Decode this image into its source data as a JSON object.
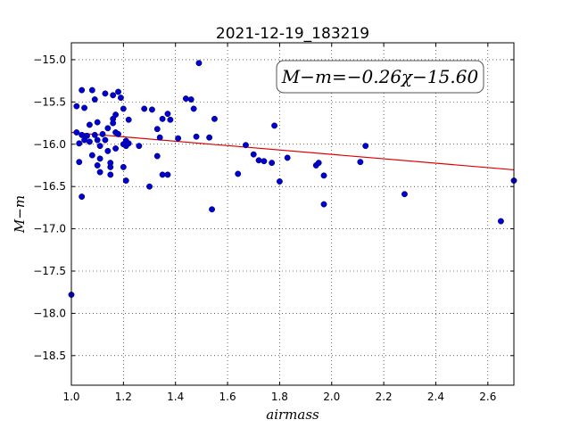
{
  "chart_data": {
    "type": "scatter",
    "title": "2021-12-19_183219",
    "xlabel": "airmass",
    "ylabel": "M−m",
    "xlim": [
      1.0,
      2.7
    ],
    "ylim": [
      -18.85,
      -14.8
    ],
    "x_ticks": [
      1.0,
      1.2,
      1.4,
      1.6,
      1.8,
      2.0,
      2.2,
      2.4,
      2.6
    ],
    "x_tick_labels": [
      "1.0",
      "1.2",
      "1.4",
      "1.6",
      "1.8",
      "2.0",
      "2.2",
      "2.4",
      "2.6"
    ],
    "y_ticks": [
      -15.0,
      -15.5,
      -16.0,
      -16.5,
      -17.0,
      -17.5,
      -18.0,
      -18.5
    ],
    "y_tick_labels": [
      "−15.0",
      "−15.5",
      "−16.0",
      "−16.5",
      "−17.0",
      "−17.5",
      "−18.0",
      "−18.5"
    ],
    "grid": true,
    "annotation": "M−m=−0.26χ−15.60",
    "point_color": "#0000cc",
    "fit_color": "#dd0000",
    "fit": {
      "slope": -0.26,
      "intercept": -15.6
    },
    "points": [
      [
        1.0,
        -17.78
      ],
      [
        1.02,
        -15.86
      ],
      [
        1.02,
        -15.55
      ],
      [
        1.03,
        -15.99
      ],
      [
        1.03,
        -16.21
      ],
      [
        1.04,
        -15.36
      ],
      [
        1.04,
        -15.89
      ],
      [
        1.04,
        -16.62
      ],
      [
        1.05,
        -15.57
      ],
      [
        1.05,
        -15.95
      ],
      [
        1.06,
        -15.9
      ],
      [
        1.07,
        -15.77
      ],
      [
        1.07,
        -15.97
      ],
      [
        1.08,
        -15.36
      ],
      [
        1.08,
        -16.13
      ],
      [
        1.09,
        -15.47
      ],
      [
        1.09,
        -15.89
      ],
      [
        1.1,
        -15.74
      ],
      [
        1.1,
        -15.95
      ],
      [
        1.1,
        -16.25
      ],
      [
        1.11,
        -16.02
      ],
      [
        1.11,
        -16.17
      ],
      [
        1.11,
        -16.33
      ],
      [
        1.12,
        -15.88
      ],
      [
        1.13,
        -15.4
      ],
      [
        1.13,
        -15.95
      ],
      [
        1.14,
        -15.81
      ],
      [
        1.14,
        -16.08
      ],
      [
        1.15,
        -16.22
      ],
      [
        1.15,
        -16.27
      ],
      [
        1.15,
        -16.36
      ],
      [
        1.16,
        -15.42
      ],
      [
        1.16,
        -15.7
      ],
      [
        1.16,
        -15.75
      ],
      [
        1.17,
        -15.65
      ],
      [
        1.17,
        -15.86
      ],
      [
        1.17,
        -16.05
      ],
      [
        1.18,
        -15.38
      ],
      [
        1.18,
        -15.88
      ],
      [
        1.19,
        -15.45
      ],
      [
        1.2,
        -15.58
      ],
      [
        1.2,
        -16.0
      ],
      [
        1.2,
        -16.27
      ],
      [
        1.21,
        -15.96
      ],
      [
        1.21,
        -16.02
      ],
      [
        1.21,
        -16.43
      ],
      [
        1.22,
        -15.71
      ],
      [
        1.22,
        -15.99
      ],
      [
        1.26,
        -16.02
      ],
      [
        1.28,
        -15.58
      ],
      [
        1.3,
        -16.5
      ],
      [
        1.31,
        -15.59
      ],
      [
        1.33,
        -15.82
      ],
      [
        1.33,
        -16.14
      ],
      [
        1.34,
        -15.92
      ],
      [
        1.35,
        -15.7
      ],
      [
        1.35,
        -16.36
      ],
      [
        1.37,
        -15.64
      ],
      [
        1.37,
        -16.36
      ],
      [
        1.38,
        -15.71
      ],
      [
        1.41,
        -15.93
      ],
      [
        1.44,
        -15.46
      ],
      [
        1.46,
        -15.47
      ],
      [
        1.47,
        -15.58
      ],
      [
        1.48,
        -15.91
      ],
      [
        1.49,
        -15.04
      ],
      [
        1.53,
        -15.92
      ],
      [
        1.54,
        -16.77
      ],
      [
        1.55,
        -15.7
      ],
      [
        1.64,
        -16.35
      ],
      [
        1.67,
        -16.01
      ],
      [
        1.7,
        -16.12
      ],
      [
        1.72,
        -16.19
      ],
      [
        1.74,
        -16.2
      ],
      [
        1.77,
        -16.22
      ],
      [
        1.78,
        -15.78
      ],
      [
        1.8,
        -16.44
      ],
      [
        1.83,
        -16.16
      ],
      [
        1.94,
        -16.25
      ],
      [
        1.95,
        -16.22
      ],
      [
        1.97,
        -16.37
      ],
      [
        1.97,
        -16.71
      ],
      [
        2.11,
        -16.21
      ],
      [
        2.13,
        -16.02
      ],
      [
        2.28,
        -16.59
      ],
      [
        2.65,
        -16.91
      ],
      [
        2.7,
        -16.43
      ]
    ]
  }
}
